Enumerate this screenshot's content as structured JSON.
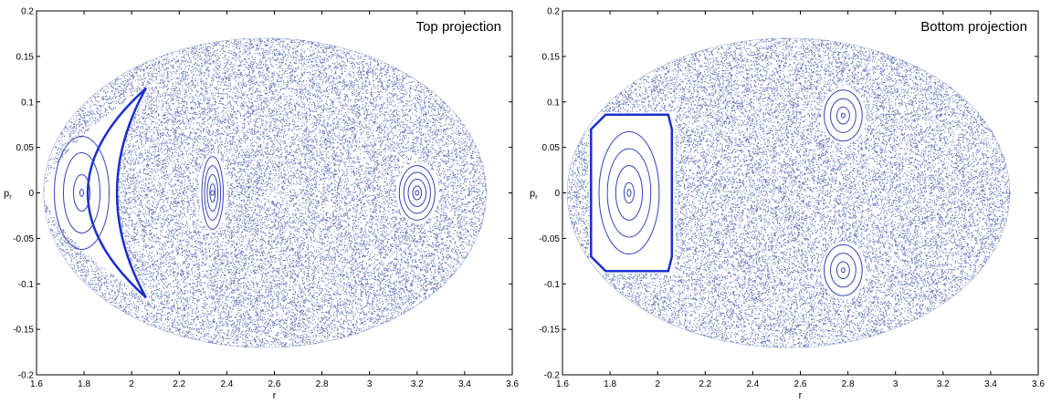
{
  "colors": {
    "chaos_dots": "#4a5fae",
    "island_lines": "#3344b8",
    "boundary": "#1a2ed0",
    "axis": "#000000",
    "background": "#ffffff"
  },
  "chart_data": [
    {
      "type": "scatter",
      "title": "Top projection",
      "xlabel": "r",
      "ylabel": "p_r",
      "xlim": [
        1.6,
        3.6
      ],
      "ylim": [
        -0.2,
        0.2
      ],
      "xticks": [
        "1.6",
        "1.8",
        "2",
        "2.2",
        "2.4",
        "2.6",
        "2.8",
        "3",
        "3.2",
        "3.4",
        "3.6"
      ],
      "yticks": [
        "0.2",
        "0.15",
        "0.1",
        "0.05",
        "0",
        "-0.05",
        "-0.1",
        "-0.15",
        "-0.2"
      ],
      "grid": false,
      "chaotic_sea": {
        "r_min": 1.63,
        "r_max": 3.49,
        "p_max": 0.17
      },
      "islands": [
        {
          "shape": "crescent",
          "tips": [
            [
              2.06,
              0.115
            ],
            [
              2.06,
              -0.115
            ]
          ],
          "left_r": 1.64,
          "inner_left_r": 1.87,
          "contours": 3,
          "center": [
            1.79,
            0.0
          ]
        },
        {
          "shape": "oval",
          "center": [
            2.34,
            0.0
          ],
          "r_radius": 0.09,
          "p_radius": 0.04,
          "contours": 4
        },
        {
          "shape": "oval",
          "center": [
            3.2,
            0.0
          ],
          "r_radius": 0.15,
          "p_radius": 0.03,
          "contours": 4
        }
      ]
    },
    {
      "type": "scatter",
      "title": "Bottom projection",
      "xlabel": "r",
      "ylabel": "p_r",
      "xlim": [
        1.6,
        3.6
      ],
      "ylim": [
        -0.2,
        0.2
      ],
      "xticks": [
        "1.6",
        "1.8",
        "2",
        "2.2",
        "2.4",
        "2.6",
        "2.8",
        "3",
        "3.2",
        "3.4",
        "3.6"
      ],
      "yticks": [
        "0.2",
        "0.15",
        "0.1",
        "0.05",
        "0",
        "-0.05",
        "-0.1",
        "-0.15",
        "-0.2"
      ],
      "grid": false,
      "chaotic_sea": {
        "r_min": 1.62,
        "r_max": 3.48,
        "p_max": 0.17
      },
      "islands": [
        {
          "shape": "rect",
          "center": [
            1.88,
            0.0
          ],
          "r_range": [
            1.72,
            2.06
          ],
          "p_range": [
            -0.086,
            0.086
          ],
          "contours": 4
        },
        {
          "shape": "oval",
          "center": [
            2.78,
            0.085
          ],
          "r_radius": 0.16,
          "p_radius": 0.028,
          "contours": 3
        },
        {
          "shape": "oval",
          "center": [
            2.78,
            -0.085
          ],
          "r_radius": 0.16,
          "p_radius": 0.028,
          "contours": 3
        }
      ]
    }
  ]
}
